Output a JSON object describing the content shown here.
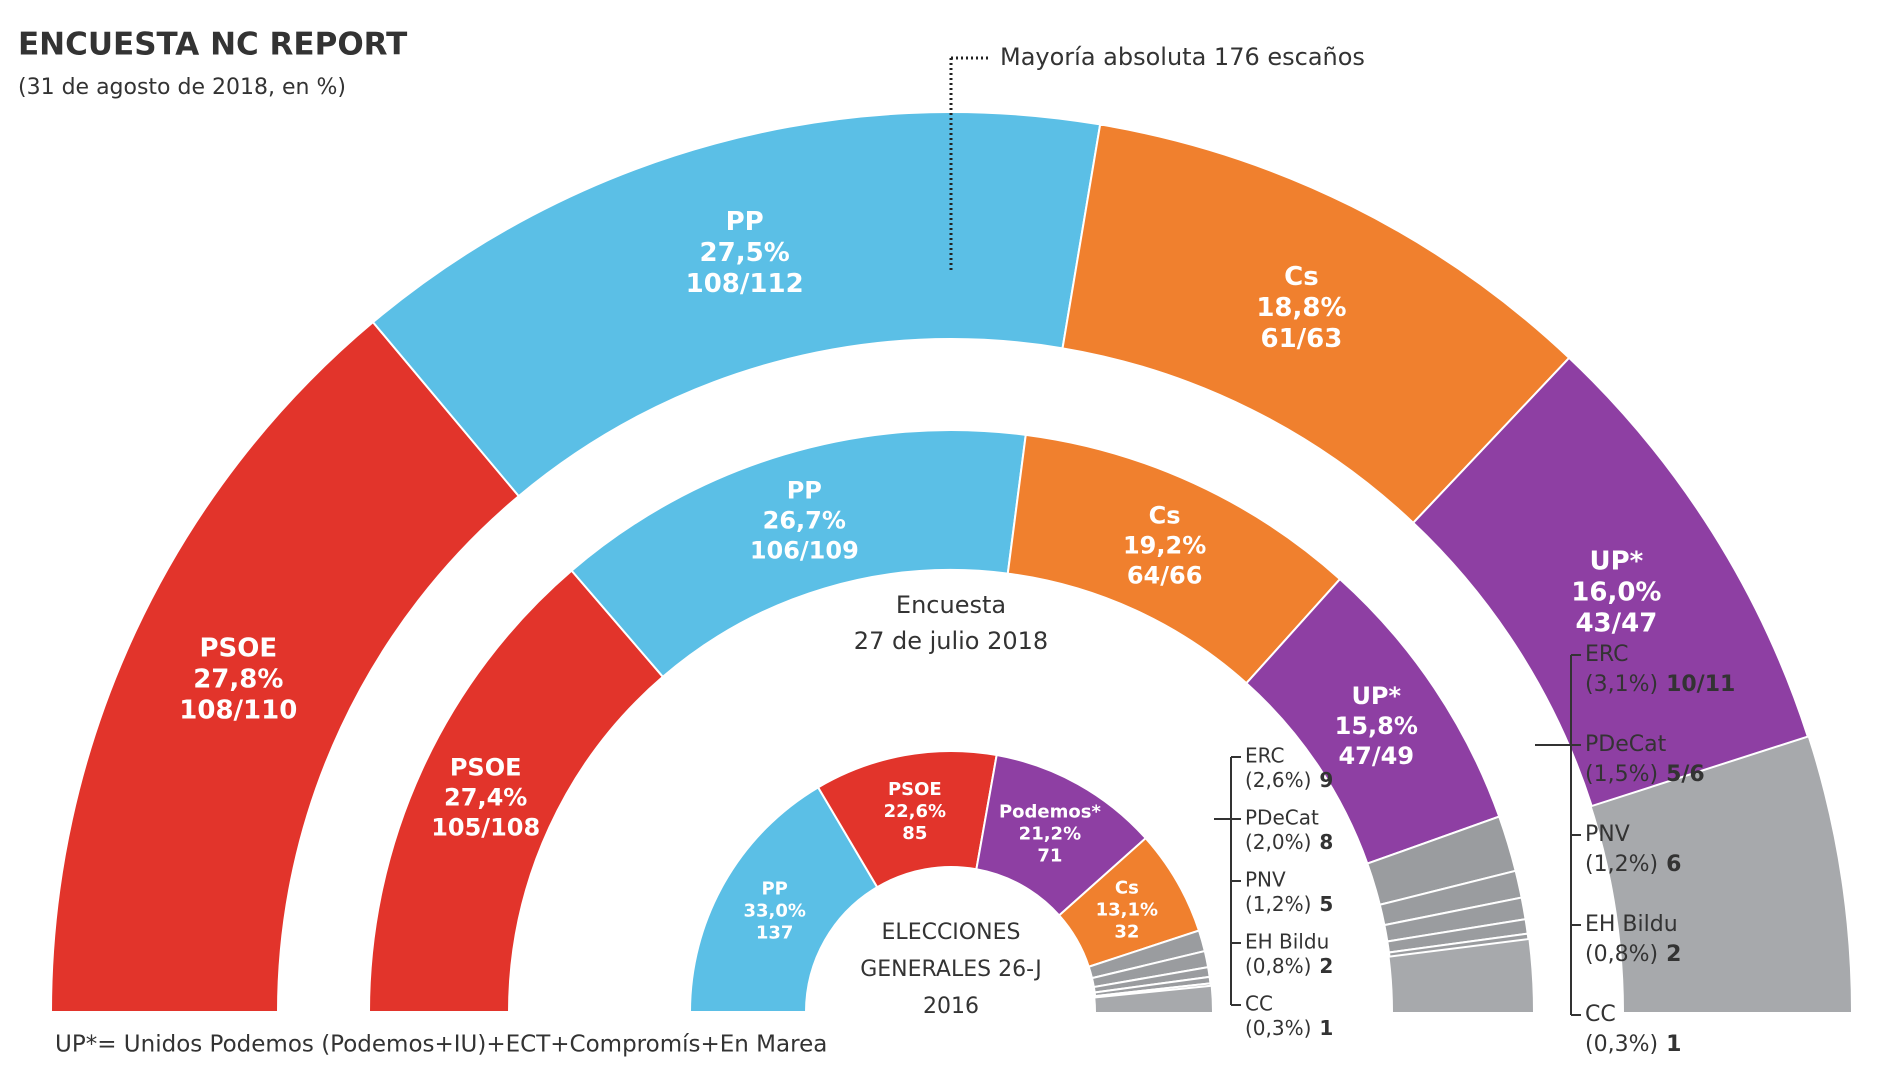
{
  "chart_data": [
    {
      "type": "parliament",
      "title": "ENCUESTA NC REPORT",
      "subtitle": "(31 de agosto de 2018, en %)",
      "annotation": "Mayoría absoluta 176 escaños",
      "note": "UP*= Unidos Podemos (Podemos+IU)+ECT+Compromís+En Marea",
      "categories": [
        "PSOE",
        "PP",
        "Cs",
        "UP*"
      ],
      "values": [
        27.8,
        27.5,
        18.8,
        16.0
      ],
      "value_labels": [
        "27,8%",
        "27,5%",
        "18,8%",
        "16,0%"
      ],
      "seat_labels": [
        "108/110",
        "108/112",
        "61/63",
        "43/47"
      ],
      "colors": [
        "#e2342b",
        "#5bbfe6",
        "#f0802e",
        "#8e3fa3"
      ]
    },
    {
      "type": "parliament",
      "center_label": [
        "Encuesta",
        "27 de julio 2018"
      ],
      "categories": [
        "PSOE",
        "PP",
        "Cs",
        "UP*",
        "ERC",
        "PDeCat",
        "PNV",
        "EH Bildu",
        "CC"
      ],
      "values": [
        27.4,
        26.7,
        19.2,
        15.8,
        3.1,
        1.5,
        1.2,
        0.8,
        0.3
      ],
      "value_labels": [
        "27,4%",
        "26,7%",
        "19,2%",
        "15,8%",
        "(3,1%)",
        "(1,5%)",
        "(1,2%)",
        "(0,8%)",
        "(0,3%)"
      ],
      "seat_labels": [
        "105/108",
        "106/109",
        "64/66",
        "47/49",
        "10/11",
        "5/6",
        "6",
        "2",
        "1"
      ],
      "colors": [
        "#e2342b",
        "#5bbfe6",
        "#f0802e",
        "#8e3fa3",
        "#9a9c9f",
        "#9a9c9f",
        "#9a9c9f",
        "#9a9c9f",
        "#9a9c9f"
      ]
    },
    {
      "type": "parliament",
      "center_label": [
        "ELECCIONES",
        "GENERALES 26-J",
        "2016"
      ],
      "categories": [
        "PP",
        "PSOE",
        "Podemos*",
        "Cs",
        "ERC",
        "PDeCat",
        "PNV",
        "EH Bildu",
        "CC"
      ],
      "values": [
        33.0,
        22.6,
        21.2,
        13.1,
        2.6,
        2.0,
        1.2,
        0.8,
        0.3
      ],
      "value_labels": [
        "33,0%",
        "22,6%",
        "21,2%",
        "13,1%",
        "(2,6%)",
        "(2,0%)",
        "(1,2%)",
        "(0,8%)",
        "(0,3%)"
      ],
      "seat_labels": [
        "137",
        "85",
        "71",
        "32",
        "9",
        "8",
        "5",
        "2",
        "1"
      ],
      "colors": [
        "#5bbfe6",
        "#e2342b",
        "#8e3fa3",
        "#f0802e",
        "#9a9c9f",
        "#9a9c9f",
        "#9a9c9f",
        "#9a9c9f",
        "#9a9c9f"
      ]
    }
  ]
}
